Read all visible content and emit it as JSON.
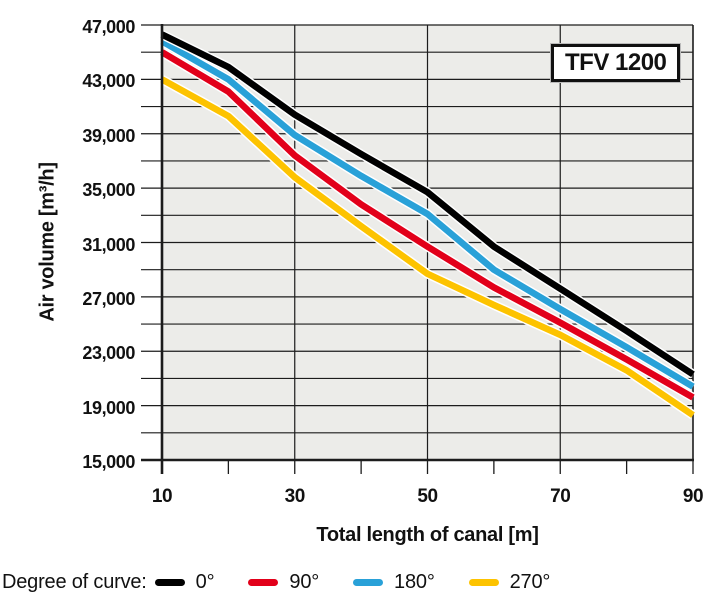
{
  "title_box": "TFV 1200",
  "axes": {
    "y_label": "Air volume [m³/h]",
    "x_label": "Total length of canal [m]",
    "y_ticks_labeled": [
      "47,000",
      "43,000",
      "39,000",
      "35,000",
      "31,000",
      "27,000",
      "23,000",
      "19,000",
      "15,000"
    ],
    "x_ticks_labeled": [
      "10",
      "30",
      "50",
      "70",
      "90"
    ]
  },
  "legend": {
    "label": "Degree of curve:"
  },
  "colors": {
    "curve_0deg": "#000000",
    "curve_90deg": "#e2001a",
    "curve_180deg": "#29a1d8",
    "curve_270deg": "#fdc300",
    "plot_background": "#ecece9",
    "grid": "#1c1c1c",
    "text": "#111111"
  },
  "chart_data": {
    "type": "line",
    "title": "TFV 1200",
    "xlabel": "Total length of canal [m]",
    "ylabel": "Air volume [m³/h]",
    "x": [
      10,
      20,
      30,
      40,
      50,
      60,
      70,
      80,
      90
    ],
    "xlim": [
      10,
      90
    ],
    "ylim": [
      15000,
      47000
    ],
    "y_gridline_step": 2000,
    "y_label_step": 4000,
    "x_tick_step": 10,
    "x_label_step": 20,
    "x_gridlines": [
      30,
      50,
      70
    ],
    "grid": true,
    "legend_position": "bottom",
    "series": [
      {
        "name": "0°",
        "color": "#000000",
        "values": [
          46300,
          43900,
          40400,
          37500,
          34700,
          30700,
          27600,
          24500,
          21300
        ]
      },
      {
        "name": "90°",
        "color": "#e2001a",
        "values": [
          45000,
          42100,
          37400,
          33800,
          30700,
          27700,
          25100,
          22400,
          19600
        ]
      },
      {
        "name": "180°",
        "color": "#29a1d8",
        "values": [
          45800,
          43000,
          38900,
          35900,
          33100,
          29000,
          26100,
          23300,
          20400
        ]
      },
      {
        "name": "270°",
        "color": "#fdc300",
        "values": [
          43000,
          40300,
          35800,
          32200,
          28700,
          26400,
          24200,
          21600,
          18300
        ]
      }
    ]
  }
}
